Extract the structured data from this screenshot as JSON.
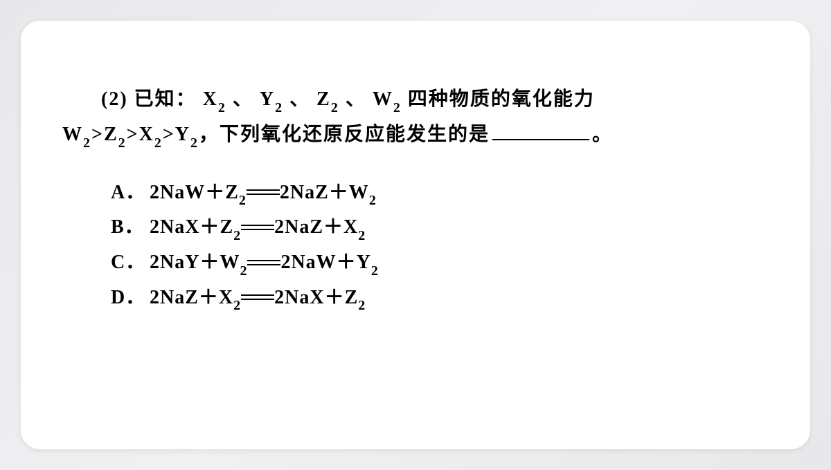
{
  "slide": {
    "background_gradient": [
      "#e8e8ea",
      "#f0f0f2",
      "#e8e8ea"
    ],
    "card_background": "#ffffff",
    "card_border_radius": 28,
    "text_color": "#000000",
    "font_family": "SimSun, Times New Roman, serif",
    "font_size": 28,
    "font_weight": "bold"
  },
  "question": {
    "number": "(2)",
    "line1_prefix": "已知：",
    "line1_substances": "X₂ 、 Y₂ 、 Z₂ 、 W₂",
    "line1_suffix": "四种物质的氧化能力",
    "line2_prefix": "W₂>Z₂>X₂>Y₂，下列氧化还原反应能发生的是",
    "line2_suffix": "。"
  },
  "options": [
    {
      "label": "A．",
      "reactant1": "2NaW",
      "plus": "＋",
      "reactant2": "Z₂",
      "product1": "2NaZ",
      "product2": "W₂"
    },
    {
      "label": "B．",
      "reactant1": "2NaX",
      "plus": "＋",
      "reactant2": "Z₂",
      "product1": "2NaZ",
      "product2": "X₂"
    },
    {
      "label": "C．",
      "reactant1": "2NaY",
      "plus": "＋",
      "reactant2": "W₂",
      "product1": "2NaW",
      "product2": "Y₂"
    },
    {
      "label": "D．",
      "reactant1": "2NaZ",
      "plus": "＋",
      "reactant2": "X₂",
      "product1": "2NaX",
      "product2": "Z₂"
    }
  ],
  "blank": {
    "width": 140,
    "border_color": "#000000"
  }
}
